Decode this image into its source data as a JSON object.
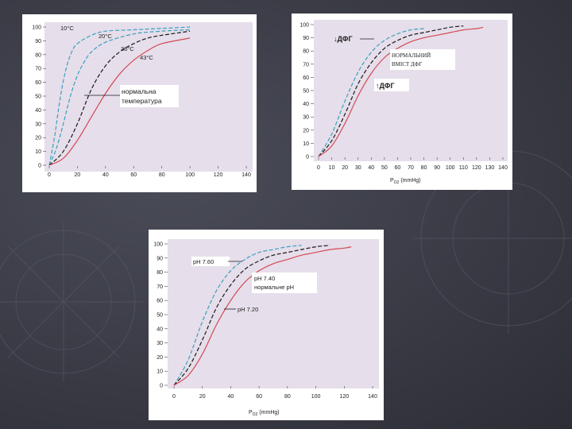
{
  "colors": {
    "plot_bg": "#e6deea",
    "blue": "#3aa0c0",
    "teal": "#4fb3c6",
    "black": "#1a1a1a",
    "red": "#d24a55"
  },
  "chart_data": [
    {
      "type": "line",
      "xlim": [
        0,
        140
      ],
      "ylim": [
        0,
        100
      ],
      "xticks": [
        "0",
        "20",
        "40",
        "60",
        "80",
        "100",
        "120",
        "140"
      ],
      "yticks": [
        "0",
        "10",
        "20",
        "30",
        "40",
        "50",
        "60",
        "70",
        "80",
        "90",
        "100"
      ],
      "grid": false,
      "series": [
        {
          "name": "10°C",
          "color": "#3aa0c0",
          "dash": true,
          "x": [
            0,
            4,
            8,
            12,
            16,
            20,
            30,
            40,
            60,
            80,
            100
          ],
          "y": [
            0,
            22,
            50,
            70,
            82,
            88,
            94,
            97,
            98,
            99,
            100
          ]
        },
        {
          "name": "20°C",
          "color": "#3aa0c0",
          "dash": true,
          "x": [
            0,
            5,
            10,
            15,
            20,
            25,
            30,
            40,
            60,
            80,
            100
          ],
          "y": [
            0,
            12,
            30,
            50,
            65,
            75,
            82,
            89,
            95,
            97,
            98
          ]
        },
        {
          "name": "38°C",
          "color": "#1a1a1a",
          "dash": true,
          "x": [
            0,
            10,
            20,
            30,
            40,
            50,
            60,
            70,
            80,
            100
          ],
          "y": [
            0,
            10,
            30,
            55,
            72,
            82,
            88,
            92,
            94,
            97
          ]
        },
        {
          "name": "43°C",
          "color": "#d24a55",
          "dash": false,
          "x": [
            0,
            10,
            20,
            30,
            40,
            50,
            60,
            70,
            80,
            100
          ],
          "y": [
            0,
            5,
            18,
            35,
            52,
            66,
            76,
            83,
            88,
            92
          ]
        }
      ],
      "annotations": {
        "l10": "10°C",
        "l20": "20°C",
        "l38": "38°C",
        "l43": "43°C",
        "normal_line1": "нормальна",
        "normal_line2": "температура"
      }
    },
    {
      "type": "line",
      "xlim": [
        0,
        140
      ],
      "ylim": [
        0,
        100
      ],
      "xticks": [
        "0",
        "10",
        "20",
        "30",
        "40",
        "50",
        "60",
        "70",
        "80",
        "90",
        "100",
        "110",
        "120",
        "130",
        "140"
      ],
      "xtick_values": [
        0,
        10,
        20,
        30,
        40,
        50,
        60,
        70,
        80,
        90,
        100,
        110,
        120,
        130,
        140
      ],
      "yticks": [
        "0",
        "10",
        "20",
        "30",
        "40",
        "50",
        "60",
        "70",
        "80",
        "90",
        "100"
      ],
      "xlabel": "P",
      "xlabel_sub": "O2",
      "xlabel_unit": "(mmHg)",
      "grid": false,
      "series": [
        {
          "name": "↓ДФГ",
          "color": "#3aa0c0",
          "dash": true,
          "x": [
            0,
            10,
            20,
            30,
            40,
            50,
            60,
            70,
            80
          ],
          "y": [
            0,
            17,
            42,
            64,
            79,
            88,
            93,
            96,
            97
          ]
        },
        {
          "name": "нормальний вміст ДФГ",
          "color": "#1a1a1a",
          "dash": true,
          "x": [
            0,
            10,
            20,
            30,
            40,
            50,
            60,
            70,
            80,
            90,
            100,
            110
          ],
          "y": [
            0,
            12,
            32,
            55,
            71,
            82,
            88,
            92,
            94,
            96,
            98,
            99
          ]
        },
        {
          "name": "↑ДФГ",
          "color": "#d24a55",
          "dash": false,
          "x": [
            0,
            10,
            20,
            30,
            40,
            50,
            60,
            70,
            80,
            90,
            100,
            110,
            120,
            125
          ],
          "y": [
            0,
            8,
            25,
            46,
            63,
            75,
            82,
            87,
            90,
            92,
            94,
            96,
            97,
            98
          ]
        }
      ],
      "annotations": {
        "down": "↓ДФГ",
        "normal_line1": "НОРМАЛЬНИЙ",
        "normal_line2": "ВМІСТ ДФГ",
        "up": "↑ДФГ"
      }
    },
    {
      "type": "line",
      "xlim": [
        0,
        140
      ],
      "ylim": [
        0,
        100
      ],
      "xticks": [
        "0",
        "20",
        "40",
        "60",
        "80",
        "100",
        "120",
        "140"
      ],
      "yticks": [
        "0",
        "10",
        "20",
        "30",
        "40",
        "50",
        "60",
        "70",
        "80",
        "90",
        "100"
      ],
      "xlabel": "P",
      "xlabel_sub": "O2",
      "xlabel_unit": "(mmHg)",
      "grid": false,
      "series": [
        {
          "name": "pH 7.60",
          "color": "#3aa0c0",
          "dash": true,
          "x": [
            0,
            10,
            20,
            30,
            40,
            50,
            60,
            70,
            80,
            90
          ],
          "y": [
            0,
            18,
            45,
            67,
            81,
            89,
            94,
            96,
            98,
            99
          ]
        },
        {
          "name": "pH 7.40 нормальне pH",
          "color": "#1a1a1a",
          "dash": true,
          "x": [
            0,
            10,
            20,
            30,
            40,
            50,
            60,
            70,
            80,
            90,
            100,
            110
          ],
          "y": [
            0,
            12,
            32,
            55,
            71,
            82,
            88,
            92,
            94,
            96,
            98,
            99
          ]
        },
        {
          "name": "pH 7.20",
          "color": "#d24a55",
          "dash": false,
          "x": [
            0,
            10,
            20,
            30,
            40,
            50,
            60,
            70,
            80,
            90,
            100,
            110,
            120,
            125
          ],
          "y": [
            0,
            7,
            22,
            43,
            60,
            73,
            81,
            86,
            89,
            92,
            94,
            96,
            97,
            98
          ]
        }
      ],
      "annotations": {
        "p760": "pH 7.60",
        "p740_line1": "pH 7.40",
        "p740_line2": "нормальне pH",
        "p720": "pH 7.20"
      }
    }
  ]
}
